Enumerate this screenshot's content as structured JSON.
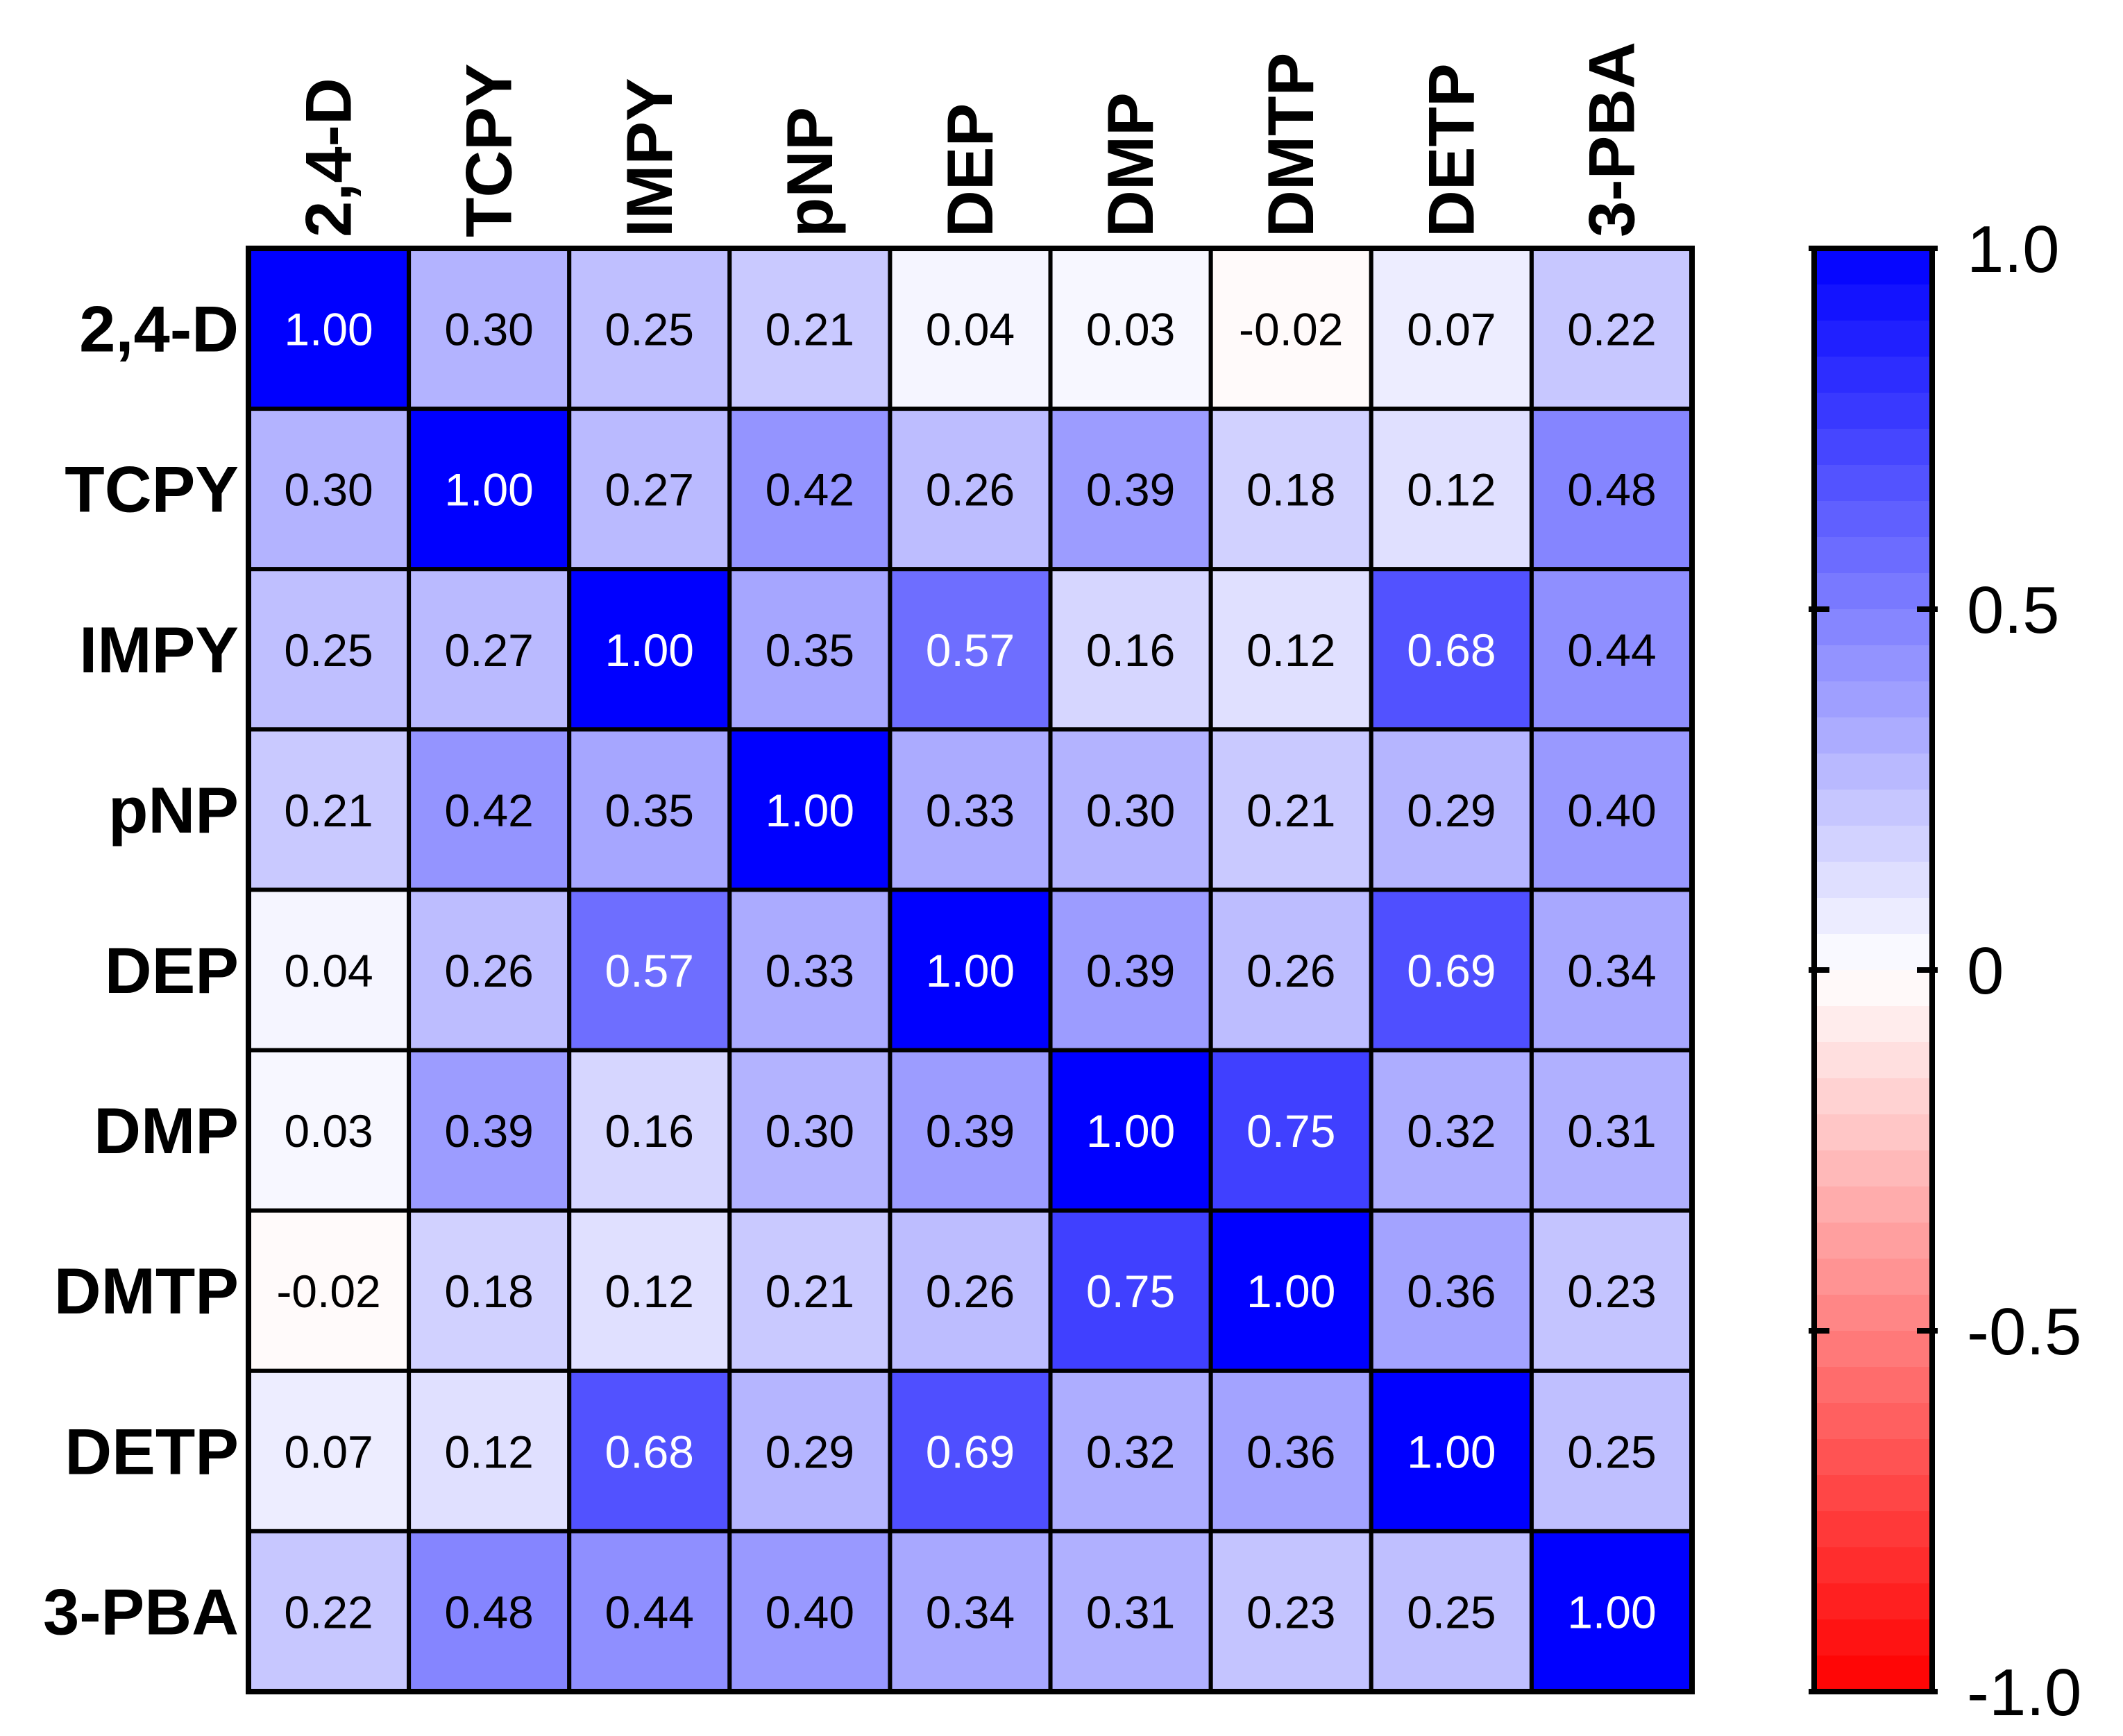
{
  "chart_data": {
    "type": "heatmap",
    "title": "",
    "xlabel": "",
    "ylabel": "",
    "columns": [
      "2,4-D",
      "TCPY",
      "IMPY",
      "pNP",
      "DEP",
      "DMP",
      "DMTP",
      "DETP",
      "3-PBA"
    ],
    "rows": [
      "2,4-D",
      "TCPY",
      "IMPY",
      "pNP",
      "DEP",
      "DMP",
      "DMTP",
      "DETP",
      "3-PBA"
    ],
    "values": [
      [
        1.0,
        0.3,
        0.25,
        0.21,
        0.04,
        0.03,
        -0.02,
        0.07,
        0.22
      ],
      [
        0.3,
        1.0,
        0.27,
        0.42,
        0.26,
        0.39,
        0.18,
        0.12,
        0.48
      ],
      [
        0.25,
        0.27,
        1.0,
        0.35,
        0.57,
        0.16,
        0.12,
        0.68,
        0.44
      ],
      [
        0.21,
        0.42,
        0.35,
        1.0,
        0.33,
        0.3,
        0.21,
        0.29,
        0.4
      ],
      [
        0.04,
        0.26,
        0.57,
        0.33,
        1.0,
        0.39,
        0.26,
        0.69,
        0.34
      ],
      [
        0.03,
        0.39,
        0.16,
        0.3,
        0.39,
        1.0,
        0.75,
        0.32,
        0.31
      ],
      [
        -0.02,
        0.18,
        0.12,
        0.21,
        0.26,
        0.75,
        1.0,
        0.36,
        0.23
      ],
      [
        0.07,
        0.12,
        0.68,
        0.29,
        0.69,
        0.32,
        0.36,
        1.0,
        0.25
      ],
      [
        0.22,
        0.48,
        0.44,
        0.4,
        0.34,
        0.31,
        0.23,
        0.25,
        1.0
      ]
    ],
    "value_format_decimals": 2,
    "color_scale": {
      "range": [
        -1.0,
        1.0
      ],
      "low_color": "#ff0000",
      "mid_color": "#ffffff",
      "high_color": "#0000ff",
      "steps": 40
    },
    "colorbar": {
      "ticks": [
        1.0,
        0.5,
        0,
        -0.5,
        -1.0
      ],
      "tick_labels": [
        "1.0",
        "0.5",
        "0",
        "-0.5",
        "-1.0"
      ],
      "placement": "right"
    }
  }
}
